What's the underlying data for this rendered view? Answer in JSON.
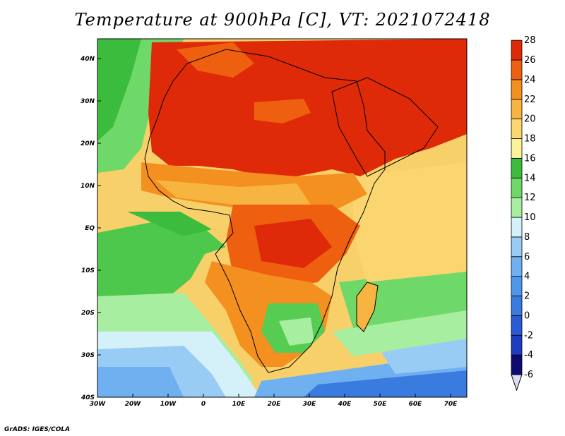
{
  "title": "Temperature at 900hPa [C], VT: 2021072418",
  "credit": "GrADS: IGES/COLA",
  "axes": {
    "lon_ticks": [
      "30W",
      "20W",
      "10W",
      "0",
      "10E",
      "20E",
      "30E",
      "40E",
      "50E",
      "60E",
      "70E"
    ],
    "lat_ticks": [
      "40N",
      "30N",
      "20N",
      "10N",
      "EQ",
      "10S",
      "20S",
      "30S",
      "40S"
    ],
    "lon_range": [
      -30,
      75
    ],
    "lat_range": [
      -40,
      45
    ]
  },
  "colorbar": {
    "levels": [
      "-6",
      "-4",
      "-2",
      "0",
      "2",
      "4",
      "6",
      "8",
      "10",
      "12",
      "14",
      "16",
      "18",
      "20",
      "22",
      "24",
      "26",
      "28"
    ],
    "colors": [
      "#0d0a70",
      "#1e3cbe",
      "#2a5ad6",
      "#3a7be0",
      "#4f97e8",
      "#6eb0f0",
      "#99ccf5",
      "#d4f0f8",
      "#a8eea0",
      "#6ed868",
      "#3cbc3c",
      "#fdf29a",
      "#fbd670",
      "#f7b440",
      "#f39020",
      "#ee6010",
      "#de2a08",
      "#c81a06"
    ]
  },
  "map_regions": {
    "ocean_south": "#5ea8ee",
    "ocean_cold": "#2a6fd8",
    "atlantic": "#f8d06a",
    "gulf_guinea_green": "#4ec84c",
    "sahara": "#de2a08",
    "sahel": "#f07018",
    "central": "#f39020",
    "south_africa_green": "#56cc52",
    "indian_ocean": "#fbd670"
  }
}
